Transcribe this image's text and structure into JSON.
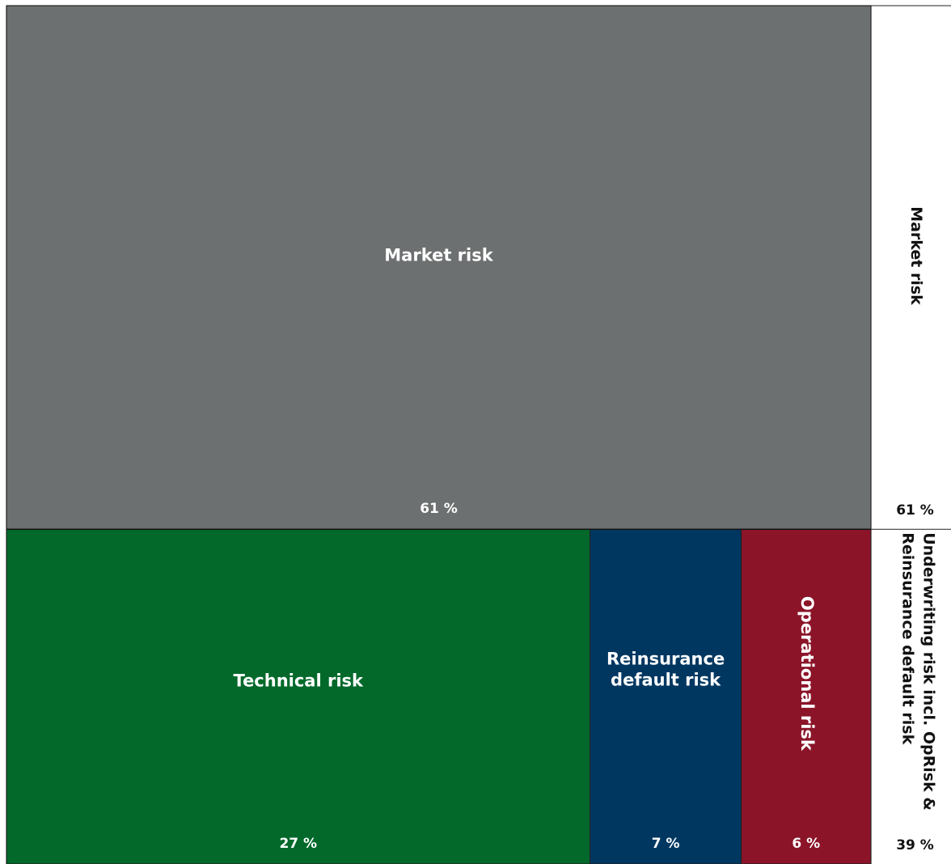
{
  "chart_data": {
    "type": "treemap",
    "groups": [
      {
        "label": "Market risk",
        "value": 61,
        "value_label": "61 %",
        "items": [
          {
            "label": "Market risk",
            "value": 61,
            "value_label": "61 %",
            "color": "#6d7070"
          }
        ]
      },
      {
        "label": "Underwriting risk incl. OpRisk & Reinsurance default risk",
        "label_lines": [
          "Underwriting risk incl. OpRisk &",
          "Reinsurance default risk"
        ],
        "value": 39,
        "value_label": "39 %",
        "items": [
          {
            "label": "Technical risk",
            "value": 27,
            "value_label": "27 %",
            "color": "#02692b"
          },
          {
            "label": "Reinsurance default risk",
            "label_lines": [
              "Reinsurance",
              "default risk"
            ],
            "value": 7,
            "value_label": "7 %",
            "color": "#003761"
          },
          {
            "label": "Operational risk",
            "value": 6,
            "value_label": "6 %",
            "color": "#8b1429",
            "vertical": true
          }
        ]
      }
    ]
  }
}
